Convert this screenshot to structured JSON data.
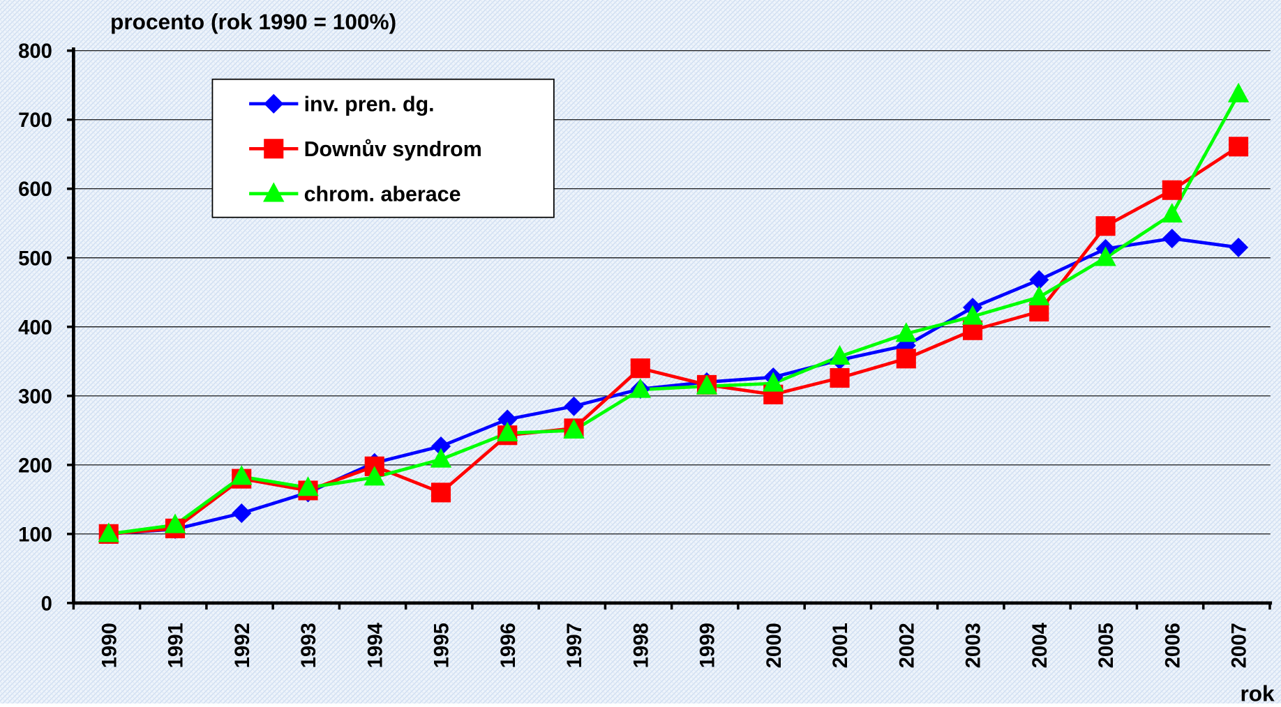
{
  "chart_data": {
    "type": "line",
    "title": "procento (rok 1990 = 100%)",
    "x_label": "rok",
    "categories": [
      "1990",
      "1991",
      "1992",
      "1993",
      "1994",
      "1995",
      "1996",
      "1997",
      "1998",
      "1999",
      "2000",
      "2001",
      "2002",
      "2003",
      "2004",
      "2005",
      "2006",
      "2007"
    ],
    "series": [
      {
        "name": "inv. pren. dg.",
        "color": "#0000ff",
        "marker": "diamond",
        "values": [
          100,
          107,
          130,
          160,
          203,
          227,
          266,
          285,
          310,
          320,
          327,
          352,
          373,
          428,
          468,
          513,
          528,
          515
        ]
      },
      {
        "name": "Downův syndrom",
        "color": "#ff0000",
        "marker": "square",
        "values": [
          100,
          108,
          180,
          163,
          198,
          160,
          243,
          253,
          340,
          316,
          302,
          326,
          354,
          395,
          422,
          546,
          598,
          661
        ]
      },
      {
        "name": "chrom. aberace",
        "color": "#00ff00",
        "marker": "triangle",
        "values": [
          100,
          113,
          183,
          167,
          182,
          208,
          246,
          250,
          309,
          314,
          318,
          357,
          390,
          415,
          443,
          500,
          563,
          737
        ]
      }
    ],
    "ylim": [
      0,
      800
    ],
    "yticks": [
      0,
      100,
      200,
      300,
      400,
      500,
      600,
      700,
      800
    ],
    "grid": true,
    "legend": "upper left"
  }
}
